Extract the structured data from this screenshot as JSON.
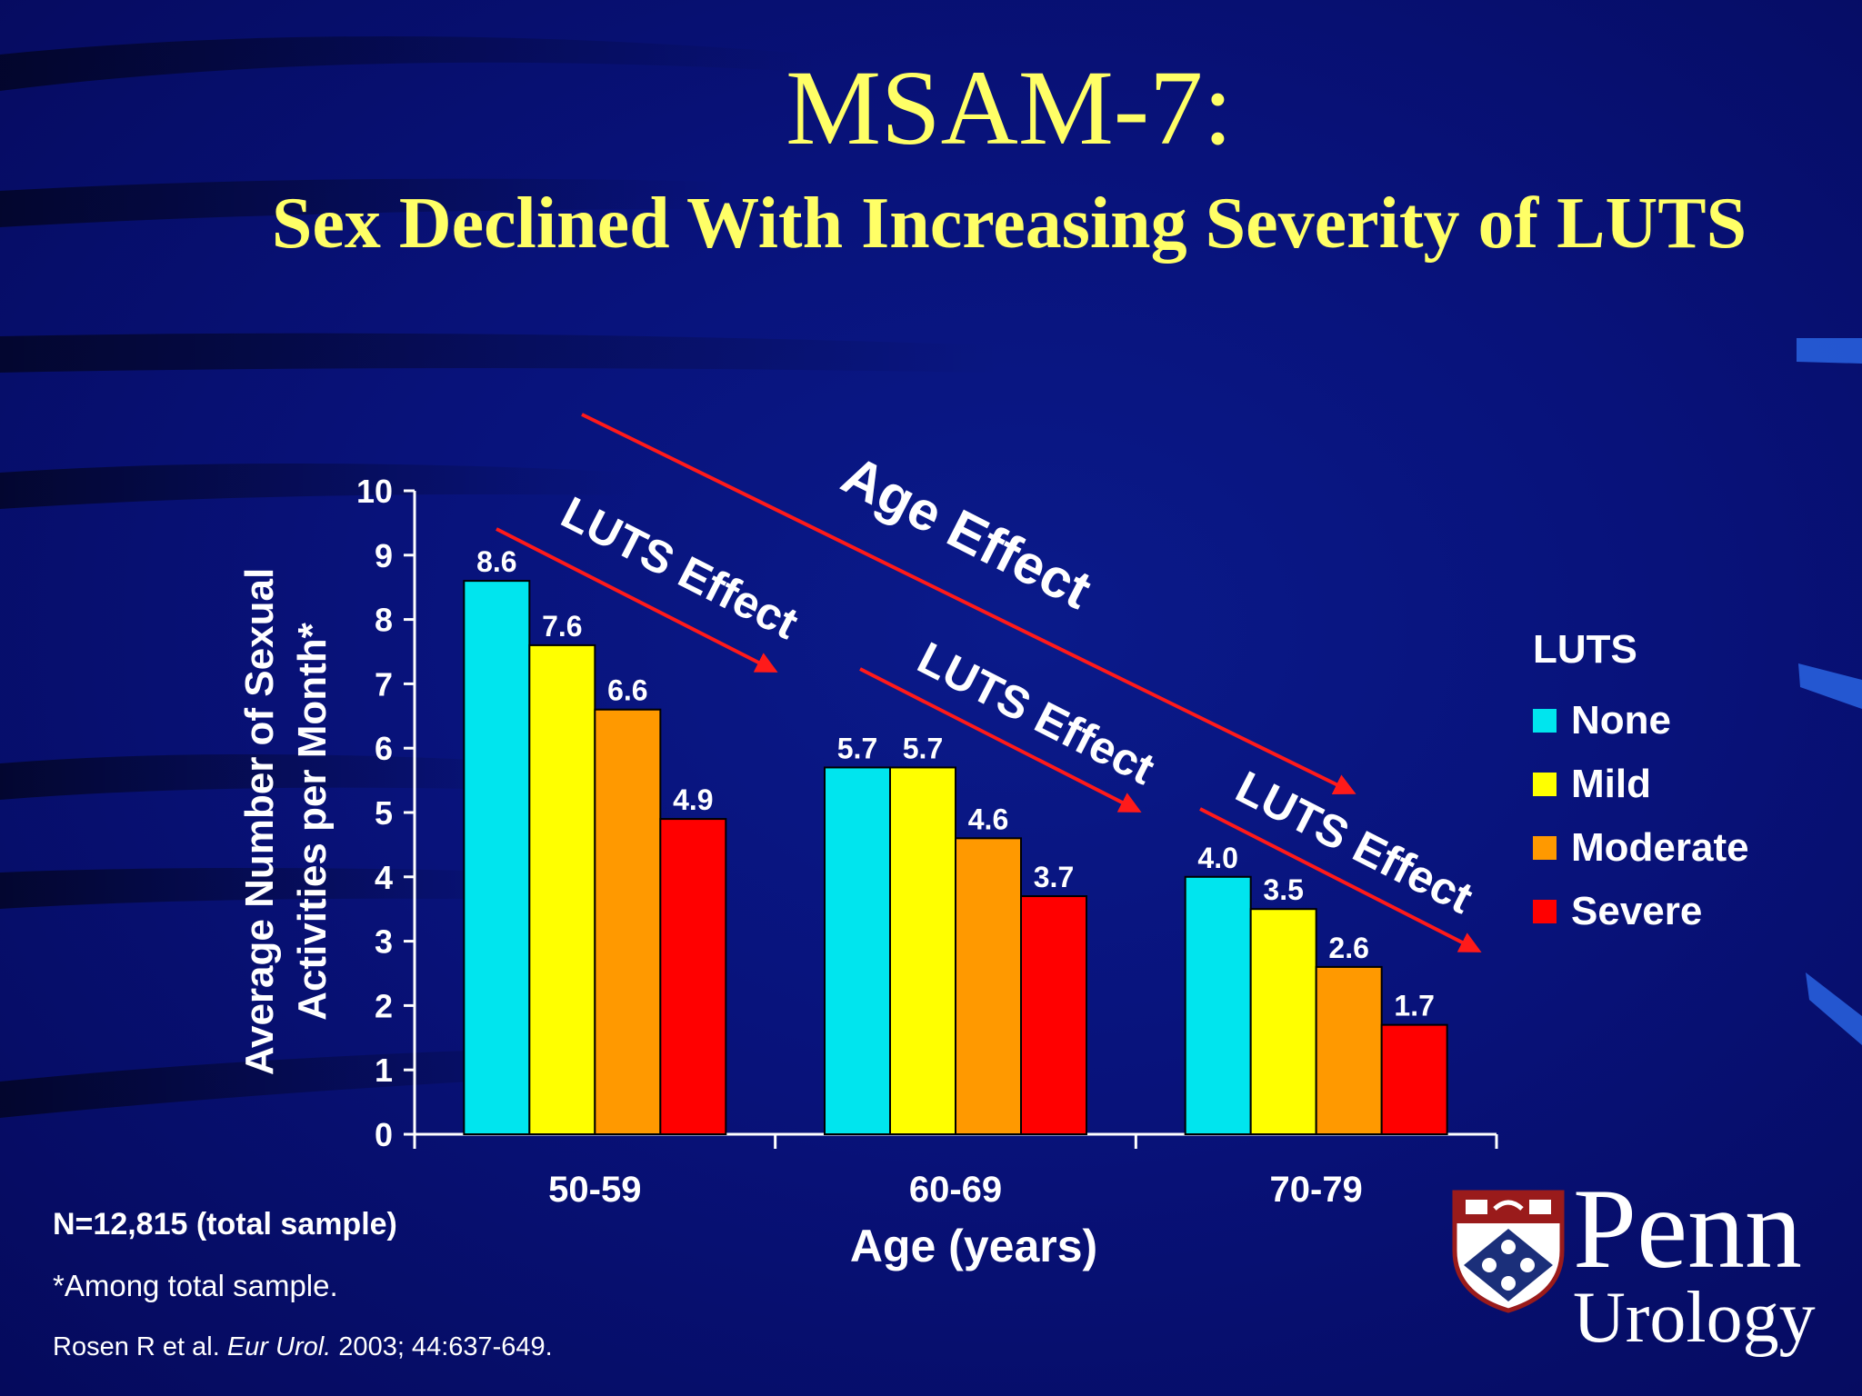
{
  "slide": {
    "title": "MSAM-7:",
    "subtitle": "Sex Declined With Increasing Severity of LUTS",
    "notes": {
      "sample": "N=12,815 (total sample)",
      "footnote": "*Among total sample.",
      "citation_author": "Rosen R et al. ",
      "citation_journal": "Eur Urol.",
      "citation_rest": " 2003; 44:637-649."
    },
    "logo": {
      "name": "Penn",
      "sub": "Urology"
    }
  },
  "chart_data": {
    "type": "bar",
    "categories": [
      "50-59",
      "60-69",
      "70-79"
    ],
    "series": [
      {
        "name": "None",
        "color": "#00e5ee",
        "values": [
          8.6,
          5.7,
          4.0
        ]
      },
      {
        "name": "Mild",
        "color": "#ffff00",
        "values": [
          7.6,
          5.7,
          3.5
        ]
      },
      {
        "name": "Moderate",
        "color": "#ff9900",
        "values": [
          6.6,
          4.6,
          2.6
        ]
      },
      {
        "name": "Severe",
        "color": "#ff0000",
        "values": [
          4.9,
          3.7,
          1.7
        ]
      }
    ],
    "data_labels": [
      [
        "8.6",
        "5.7",
        "4.0"
      ],
      [
        "7.6",
        "5.7",
        "3.5"
      ],
      [
        "6.6",
        "4.6",
        "2.6"
      ],
      [
        "4.9",
        "3.7",
        "1.7"
      ]
    ],
    "xlabel": "Age (years)",
    "ylabel_lines": [
      "Average Number of Sexual",
      "Activities per Month*"
    ],
    "ylim": [
      0,
      10
    ],
    "yticks": [
      0,
      1,
      2,
      3,
      4,
      5,
      6,
      7,
      8,
      9,
      10
    ],
    "legend_title": "LUTS",
    "legend_position": "right",
    "grid": false,
    "annotations": {
      "age_effect": "Age Effect",
      "luts_effect": "LUTS Effect"
    }
  }
}
